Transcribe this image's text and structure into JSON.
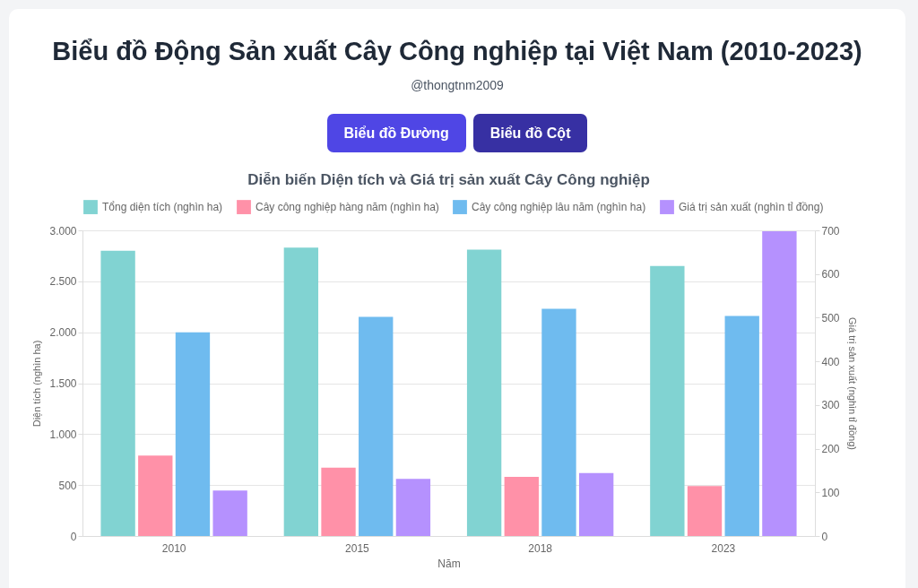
{
  "chart_data": {
    "type": "bar",
    "title": "Biểu đồ Động Sản xuất Cây Công nghiệp tại Việt Nam (2010-2023)",
    "subtitle": "Diễn biến Diện tích và Giá trị sản xuất Cây Công nghiệp",
    "annotations": [
      "@thongtnm2009",
      "Biểu đồ Đường",
      "Biểu đồ Cột"
    ],
    "xlabel": "Năm",
    "ylabel": "Diện tích (nghìn ha)",
    "y2label": "Giá trị sản xuất (nghìn tỉ đồng)",
    "categories": [
      "2010",
      "2015",
      "2018",
      "2023"
    ],
    "series": [
      {
        "name": "Tổng diện tích (nghìn ha)",
        "color": "#81d3d2",
        "values": [
          2800,
          2830,
          2810,
          2650
        ]
      },
      {
        "name": "Cây công nghiệp hàng năm (nghìn ha)",
        "color": "#ff91a8",
        "values": [
          790,
          670,
          580,
          490
        ]
      },
      {
        "name": "Cây công nghiệp lâu năm (nghìn ha)",
        "color": "#6fbbef",
        "values": [
          2000,
          2150,
          2230,
          2160
        ]
      },
      {
        "name": "Giá trị sản xuất (nghìn tỉ đồng)",
        "color": "#b591fe",
        "values": [
          104,
          131,
          144,
          698
        ],
        "axis": "y2"
      }
    ],
    "ylim": [
      0,
      3000
    ],
    "yticks": [
      0,
      {
        "value": 500,
        "label": "500"
      },
      {
        "value": 1000,
        "label": "1.000"
      },
      {
        "value": 1500,
        "label": "1.500"
      },
      {
        "value": 2000,
        "label": "2.000"
      },
      {
        "value": 2500,
        "label": "2.500"
      },
      {
        "value": 3000,
        "label": "3.000"
      }
    ],
    "y2lim": [
      0,
      700
    ],
    "y2ticks": [
      0,
      100,
      200,
      300,
      400,
      500,
      600,
      700
    ],
    "grid": "y",
    "legend": "top"
  }
}
